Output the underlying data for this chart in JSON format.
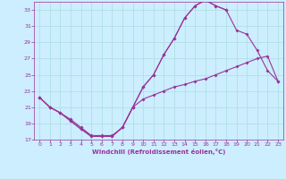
{
  "xlabel": "Windchill (Refroidissement éolien,°C)",
  "background_color": "#cceeff",
  "line_color": "#993399",
  "grid_color": "#aadddd",
  "xlim": [
    -0.5,
    23.5
  ],
  "ylim": [
    17,
    34
  ],
  "yticks": [
    17,
    19,
    21,
    23,
    25,
    27,
    29,
    31,
    33
  ],
  "xticks": [
    0,
    1,
    2,
    3,
    4,
    5,
    6,
    7,
    8,
    9,
    10,
    11,
    12,
    13,
    14,
    15,
    16,
    17,
    18,
    19,
    20,
    21,
    22,
    23
  ],
  "curve1_x": [
    0,
    1,
    2,
    3,
    4,
    5,
    6,
    7,
    8,
    9,
    10,
    11,
    12,
    13,
    14,
    15,
    16,
    17,
    18,
    19,
    20,
    21,
    22,
    23
  ],
  "curve1_y": [
    22.2,
    21.0,
    20.3,
    19.5,
    18.5,
    17.5,
    17.5,
    17.5,
    18.5,
    21.0,
    22.0,
    22.5,
    23.0,
    23.5,
    23.8,
    24.2,
    24.5,
    25.0,
    25.5,
    26.0,
    26.5,
    27.0,
    27.3,
    24.2
  ],
  "curve2_x": [
    0,
    1,
    2,
    3,
    4,
    5,
    6,
    7,
    8,
    9,
    10,
    11,
    12,
    13,
    14,
    15,
    16,
    17,
    18,
    19,
    20,
    21,
    22,
    23
  ],
  "curve2_y": [
    22.2,
    21.0,
    20.3,
    19.3,
    18.3,
    17.4,
    17.4,
    17.4,
    18.5,
    21.0,
    23.5,
    25.0,
    27.5,
    29.5,
    32.0,
    33.5,
    34.2,
    33.5,
    33.0,
    null,
    null,
    null,
    null,
    null
  ],
  "curve3_x": [
    0,
    1,
    2,
    3,
    4,
    5,
    6,
    7,
    8,
    9,
    10,
    11,
    12,
    13,
    14,
    15,
    16,
    17,
    18,
    19,
    20,
    21,
    22,
    23
  ],
  "curve3_y": [
    22.2,
    21.0,
    20.3,
    19.3,
    18.3,
    17.4,
    17.4,
    17.4,
    18.5,
    21.0,
    23.5,
    25.0,
    27.5,
    29.5,
    32.0,
    33.5,
    34.2,
    33.5,
    33.0,
    30.5,
    30.0,
    28.0,
    25.5,
    24.2
  ]
}
